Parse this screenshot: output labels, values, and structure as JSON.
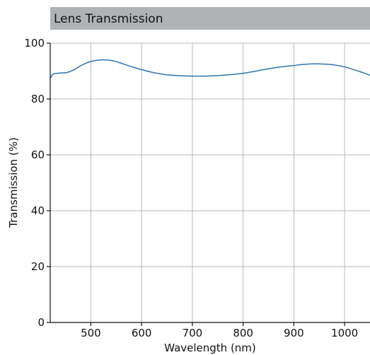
{
  "chart_data": {
    "type": "line",
    "title": "Lens Transmission",
    "xlabel": "Wavelength (nm)",
    "ylabel": "Transmission (%)",
    "xlim": [
      420,
      1050
    ],
    "ylim": [
      0,
      100
    ],
    "xticks": [
      500,
      600,
      700,
      800,
      900,
      1000
    ],
    "yticks": [
      0,
      20,
      40,
      60,
      80,
      100
    ],
    "grid": true,
    "series": [
      {
        "color": "#2e75b0",
        "x": [
          420,
          425,
          430,
          440,
          450,
          460,
          470,
          480,
          490,
          500,
          510,
          520,
          530,
          540,
          550,
          560,
          570,
          580,
          600,
          620,
          640,
          660,
          680,
          700,
          720,
          740,
          760,
          780,
          800,
          820,
          840,
          860,
          880,
          900,
          920,
          940,
          960,
          980,
          1000,
          1020,
          1035,
          1050
        ],
        "y": [
          87.5,
          88.8,
          89.1,
          89.3,
          89.4,
          89.9,
          90.8,
          91.9,
          92.8,
          93.4,
          93.8,
          94.0,
          94.0,
          93.8,
          93.4,
          92.8,
          92.2,
          91.6,
          90.5,
          89.6,
          88.9,
          88.5,
          88.3,
          88.2,
          88.2,
          88.3,
          88.5,
          88.8,
          89.2,
          89.8,
          90.5,
          91.1,
          91.6,
          92.0,
          92.4,
          92.6,
          92.5,
          92.2,
          91.5,
          90.4,
          89.5,
          88.5
        ]
      }
    ]
  }
}
